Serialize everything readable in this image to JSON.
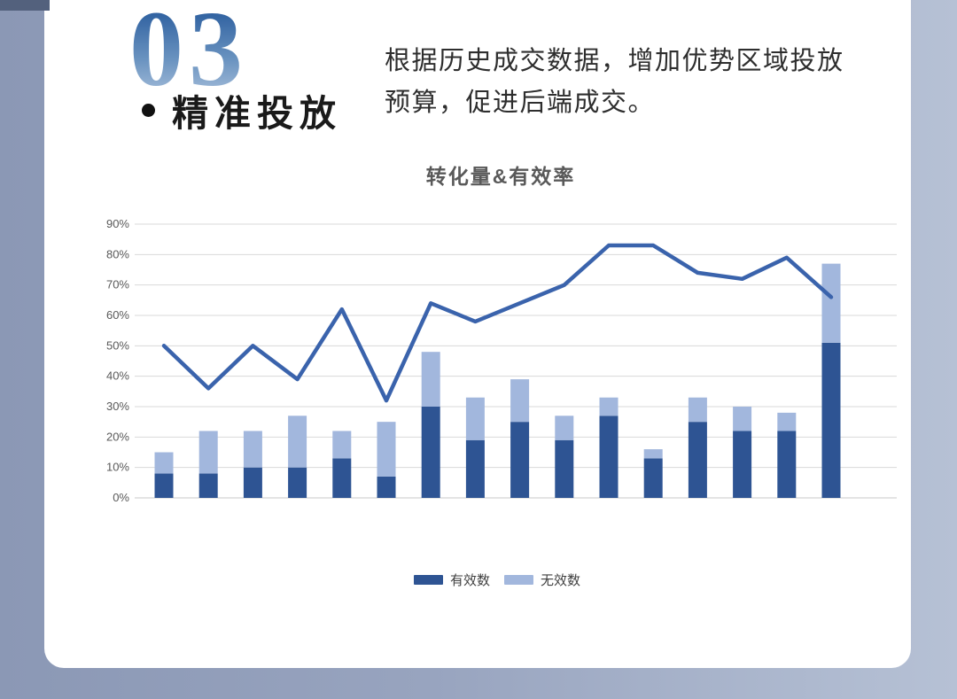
{
  "header": {
    "section_number": "03",
    "section_title": "精准投放",
    "description_line1": "根据历史成交数据，增加优势区域投放",
    "description_line2": "预算，促进后端成交。"
  },
  "chart_data": {
    "type": "combo: stacked bar + line",
    "title": "转化量&有效率",
    "y_axis": {
      "min": 0,
      "max": 90,
      "tick_step": 10,
      "unit": "%",
      "tick_labels": [
        "0%",
        "10%",
        "20%",
        "30%",
        "40%",
        "50%",
        "60%",
        "70%",
        "80%",
        "90%"
      ],
      "grid": true
    },
    "x_axis": {
      "tick_labels_visible": false,
      "num_categories": 16
    },
    "legend": {
      "position": "bottom",
      "entries": [
        "有效数",
        "无效数"
      ]
    },
    "series": [
      {
        "name": "有效数",
        "type": "bar",
        "stack": "total",
        "color": "#2e5493",
        "values": [
          8,
          8,
          10,
          10,
          13,
          7,
          30,
          19,
          25,
          19,
          27,
          13,
          25,
          22,
          22,
          51
        ]
      },
      {
        "name": "无效数",
        "type": "bar",
        "stack": "total",
        "color": "#a2b7dd",
        "values": [
          7,
          14,
          12,
          17,
          9,
          18,
          18,
          14,
          14,
          8,
          6,
          3,
          8,
          8,
          6,
          26
        ]
      },
      {
        "name": "",
        "type": "line",
        "in_legend": false,
        "color": "#3a63ac",
        "values": [
          50,
          36,
          50,
          39,
          62,
          32,
          64,
          58,
          64,
          70,
          83,
          83,
          74,
          72,
          79,
          66
        ]
      }
    ],
    "grid_color": "#d9d9d9",
    "tick_label_color": "#595959"
  },
  "decor": {
    "left_strip_color": "#8b98b5",
    "right_strip_color": "#b6c1d5",
    "top_left_accent_color": "#53617d",
    "card_color": "#ffffff",
    "number_gradient_top": "#2d5f9f",
    "number_gradient_bottom": "#a9c0dc"
  }
}
